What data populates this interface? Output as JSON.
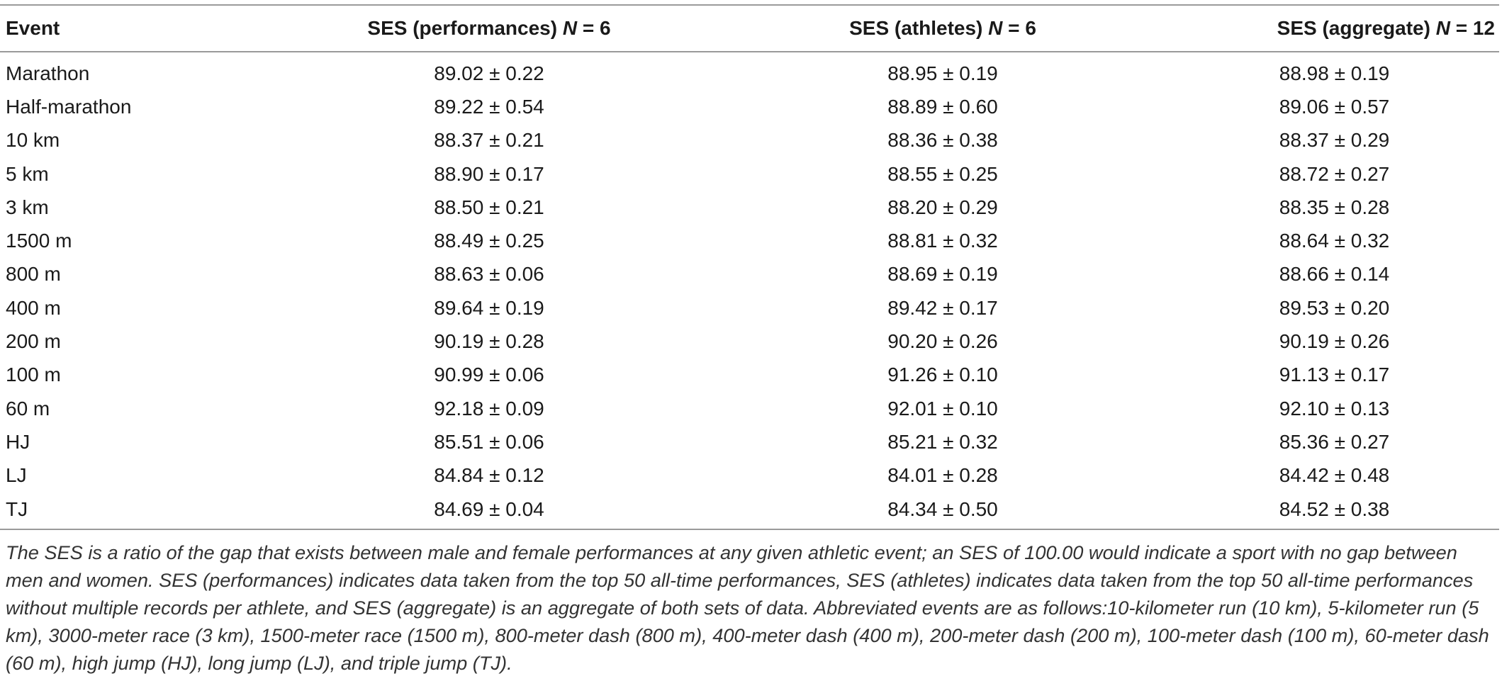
{
  "table": {
    "headers": {
      "event": "Event",
      "performances_prefix": "SES (performances) ",
      "performances_n_label": "N",
      "performances_n_value": " = 6",
      "athletes_prefix": "SES (athletes) ",
      "athletes_n_label": "N",
      "athletes_n_value": " = 6",
      "aggregate_prefix": "SES (aggregate) ",
      "aggregate_n_label": "N",
      "aggregate_n_value": " = 12"
    },
    "rows": [
      {
        "event": "Marathon",
        "performances": "89.02 ± 0.22",
        "athletes": "88.95 ± 0.19",
        "aggregate": "88.98 ± 0.19"
      },
      {
        "event": "Half-marathon",
        "performances": "89.22 ± 0.54",
        "athletes": "88.89 ± 0.60",
        "aggregate": "89.06 ± 0.57"
      },
      {
        "event": "10 km",
        "performances": "88.37 ± 0.21",
        "athletes": "88.36 ± 0.38",
        "aggregate": "88.37 ± 0.29"
      },
      {
        "event": "5 km",
        "performances": "88.90 ± 0.17",
        "athletes": "88.55 ± 0.25",
        "aggregate": "88.72 ± 0.27"
      },
      {
        "event": "3 km",
        "performances": "88.50 ± 0.21",
        "athletes": "88.20 ± 0.29",
        "aggregate": "88.35 ± 0.28"
      },
      {
        "event": "1500 m",
        "performances": "88.49 ± 0.25",
        "athletes": "88.81 ± 0.32",
        "aggregate": "88.64 ± 0.32"
      },
      {
        "event": "800 m",
        "performances": "88.63 ± 0.06",
        "athletes": "88.69 ± 0.19",
        "aggregate": "88.66 ± 0.14"
      },
      {
        "event": "400 m",
        "performances": "89.64 ± 0.19",
        "athletes": "89.42 ± 0.17",
        "aggregate": "89.53 ± 0.20"
      },
      {
        "event": "200 m",
        "performances": "90.19 ± 0.28",
        "athletes": "90.20 ± 0.26",
        "aggregate": "90.19 ± 0.26"
      },
      {
        "event": "100 m",
        "performances": "90.99 ± 0.06",
        "athletes": "91.26 ± 0.10",
        "aggregate": "91.13 ± 0.17"
      },
      {
        "event": "60 m",
        "performances": "92.18 ± 0.09",
        "athletes": "92.01 ± 0.10",
        "aggregate": "92.10 ± 0.13"
      },
      {
        "event": "HJ",
        "performances": "85.51 ± 0.06",
        "athletes": "85.21 ± 0.32",
        "aggregate": "85.36 ± 0.27"
      },
      {
        "event": "LJ",
        "performances": "84.84 ± 0.12",
        "athletes": "84.01 ± 0.28",
        "aggregate": "84.42 ± 0.48"
      },
      {
        "event": "TJ",
        "performances": "84.69 ± 0.04",
        "athletes": "84.34 ± 0.50",
        "aggregate": "84.52 ± 0.38"
      }
    ]
  },
  "footnote": "The SES is a ratio of the gap that exists between male and female performances at any given athletic event; an SES of 100.00 would indicate a sport with no gap between men and women. SES (performances) indicates data taken from the top 50 all-time performances, SES (athletes) indicates data taken from the top 50 all-time performances without multiple records per athlete, and SES (aggregate) is an aggregate of both sets of data. Abbreviated events are as follows:10-kilometer run (10 km), 5-kilometer run (5 km), 3000-meter race (3 km), 1500-meter race (1500 m), 800-meter dash (800 m), 400-meter dash (400 m), 200-meter dash (200 m), 100-meter dash (100 m), 60-meter dash (60 m), high jump (HJ), long jump (LJ), and triple jump (TJ)."
}
